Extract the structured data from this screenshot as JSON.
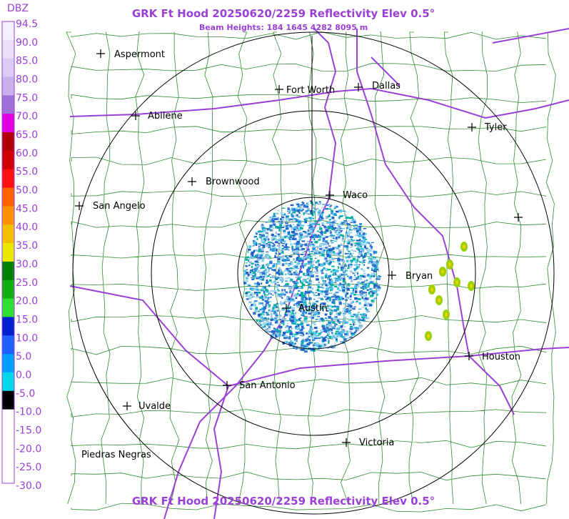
{
  "header": {
    "title": "GRK Ft Hood 20250620/2259 Reflectivity Elev 0.5°",
    "subtitle": "Beam Heights: 184 1645 4282 8095 m"
  },
  "footer": {
    "title": "GRK Ft Hood 20250620/2259 Reflectivity Elev 0.5°"
  },
  "legend": {
    "unit": "DBZ",
    "labels": [
      "94.5",
      "90.0",
      "85.0",
      "80.0",
      "75.0",
      "70.0",
      "65.0",
      "60.0",
      "55.0",
      "50.0",
      "45.0",
      "40.0",
      "35.0",
      "30.0",
      "25.0",
      "20.0",
      "15.0",
      "10.0",
      "5.0",
      "0.0",
      "-5.0",
      "-10.0",
      "-15.0",
      "-20.0",
      "-25.0",
      "-30.0"
    ]
  },
  "cities": [
    {
      "label": "Aspermont"
    },
    {
      "label": "Fort Worth"
    },
    {
      "label": "Dallas"
    },
    {
      "label": "Abilene"
    },
    {
      "label": "Tyler"
    },
    {
      "label": "Brownwood"
    },
    {
      "label": "Waco"
    },
    {
      "label": "San Angelo"
    },
    {
      "label": "Bryan"
    },
    {
      "label": "Austin"
    },
    {
      "label": "Houston"
    },
    {
      "label": "San Antonio"
    },
    {
      "label": "Uvalde"
    },
    {
      "label": "Victoria"
    },
    {
      "label": "Piedras Negras"
    }
  ]
}
